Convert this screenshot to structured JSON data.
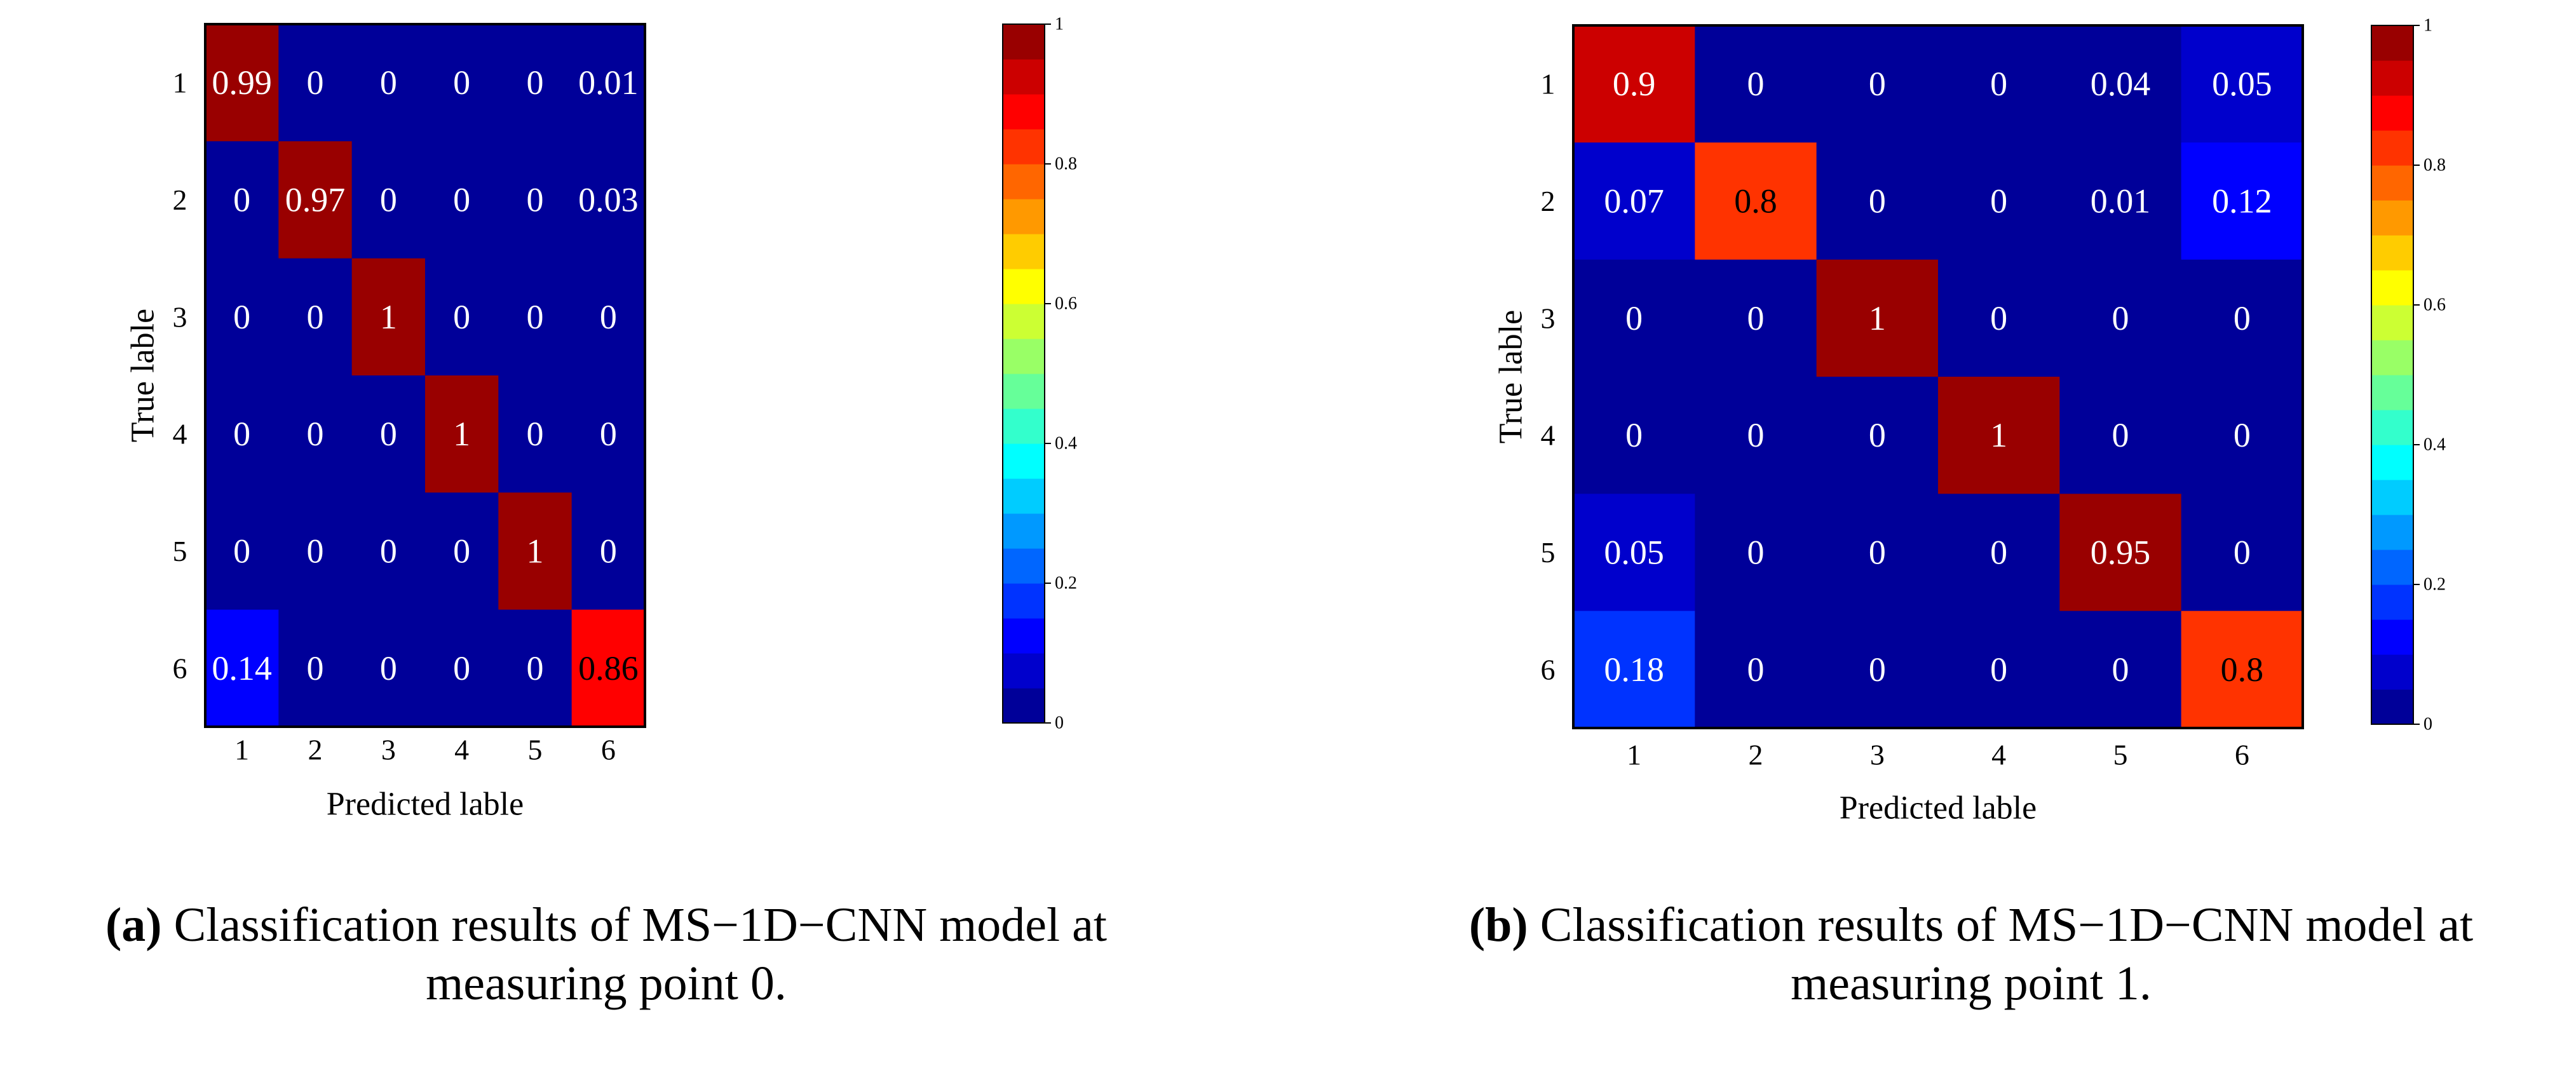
{
  "chart_data": [
    {
      "type": "heatmap",
      "title": "",
      "xlabel": "Predicted lable",
      "ylabel": "True lable",
      "x_ticks": [
        "1",
        "2",
        "3",
        "4",
        "5",
        "6"
      ],
      "y_ticks": [
        "1",
        "2",
        "3",
        "4",
        "5",
        "6"
      ],
      "values": [
        [
          0.99,
          0,
          0,
          0,
          0,
          0.01
        ],
        [
          0,
          0.97,
          0,
          0,
          0,
          0.03
        ],
        [
          0,
          0,
          1,
          0,
          0,
          0
        ],
        [
          0,
          0,
          0,
          1,
          0,
          0
        ],
        [
          0,
          0,
          0,
          0,
          1,
          0
        ],
        [
          0.14,
          0,
          0,
          0,
          0,
          0.86
        ]
      ],
      "colorbar": {
        "range": [
          0,
          1
        ],
        "ticks": [
          "0",
          "0.2",
          "0.4",
          "0.6",
          "0.8",
          "1"
        ],
        "colormap": "jet-discrete",
        "levels": 20
      },
      "caption_label": "(a)",
      "caption_text": "Classification results of MS−1D−CNN model at measuring point 0."
    },
    {
      "type": "heatmap",
      "title": "",
      "xlabel": "Predicted lable",
      "ylabel": "True lable",
      "x_ticks": [
        "1",
        "2",
        "3",
        "4",
        "5",
        "6"
      ],
      "y_ticks": [
        "1",
        "2",
        "3",
        "4",
        "5",
        "6"
      ],
      "values": [
        [
          0.9,
          0,
          0,
          0,
          0.04,
          0.05
        ],
        [
          0.07,
          0.8,
          0,
          0,
          0.01,
          0.12
        ],
        [
          0,
          0,
          1,
          0,
          0,
          0
        ],
        [
          0,
          0,
          0,
          1,
          0,
          0
        ],
        [
          0.05,
          0,
          0,
          0,
          0.95,
          0
        ],
        [
          0.18,
          0,
          0,
          0,
          0,
          0.8
        ]
      ],
      "colorbar": {
        "range": [
          0,
          1
        ],
        "ticks": [
          "0",
          "0.2",
          "0.4",
          "0.6",
          "0.8",
          "1"
        ],
        "colormap": "jet-discrete",
        "levels": 20
      },
      "caption_label": "(b)",
      "caption_text": "Classification results of MS−1D−CNN model at measuring point 1."
    }
  ]
}
